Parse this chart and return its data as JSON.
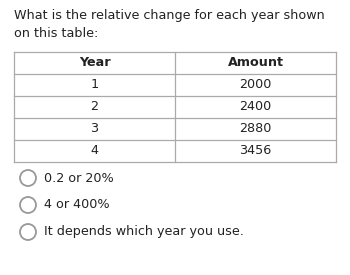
{
  "title_line1": "What is the relative change for each year shown",
  "title_line2": "on this table:",
  "col_headers": [
    "Year",
    "Amount"
  ],
  "rows": [
    [
      "1",
      "2000"
    ],
    [
      "2",
      "2400"
    ],
    [
      "3",
      "2880"
    ],
    [
      "4",
      "3456"
    ]
  ],
  "options": [
    "0.2 or 20%",
    "4 or 400%",
    "It depends which year you use."
  ],
  "bg_color": "#ffffff",
  "table_border_color": "#aaaaaa",
  "text_color": "#222222",
  "title_fontsize": 9.2,
  "table_fontsize": 9.2,
  "option_fontsize": 9.2
}
